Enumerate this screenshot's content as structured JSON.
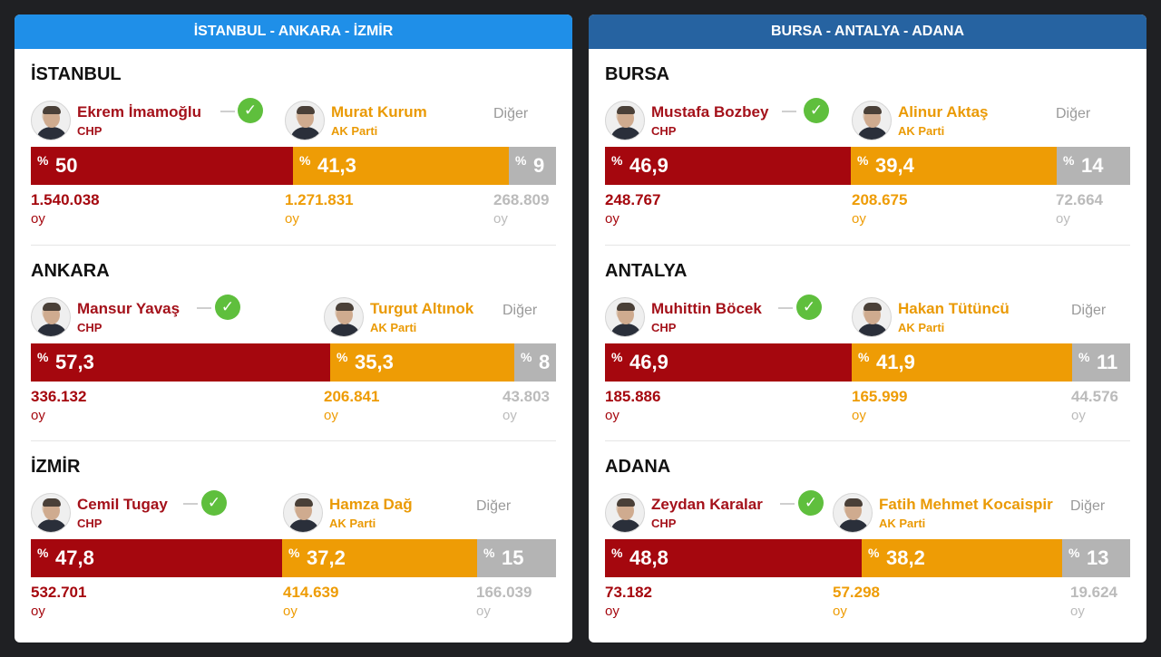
{
  "panels": [
    {
      "title": "İSTANBUL - ANKARA - İZMİR",
      "cities": [
        {
          "name": "İSTANBUL",
          "c1": {
            "name": "Ekrem İmamoğlu",
            "party": "CHP",
            "pct": 50,
            "pct_label": "50",
            "votes": "1.540.038"
          },
          "c2": {
            "name": "Murat Kurum",
            "party": "AK Parti",
            "pct": 41.3,
            "pct_label": "41,3",
            "votes": "1.271.831"
          },
          "other": {
            "label": "Diğer",
            "pct": 9,
            "pct_label": "9",
            "votes": "268.809"
          }
        },
        {
          "name": "ANKARA",
          "c1": {
            "name": "Mansur Yavaş",
            "party": "CHP",
            "pct": 57.3,
            "pct_label": "57,3",
            "votes": "336.132"
          },
          "c2": {
            "name": "Turgut Altınok",
            "party": "AK Parti",
            "pct": 35.3,
            "pct_label": "35,3",
            "votes": "206.841"
          },
          "other": {
            "label": "Diğer",
            "pct": 8,
            "pct_label": "8",
            "votes": "43.803"
          }
        },
        {
          "name": "İZMİR",
          "c1": {
            "name": "Cemil Tugay",
            "party": "CHP",
            "pct": 47.8,
            "pct_label": "47,8",
            "votes": "532.701"
          },
          "c2": {
            "name": "Hamza Dağ",
            "party": "AK Parti",
            "pct": 37.2,
            "pct_label": "37,2",
            "votes": "414.639"
          },
          "other": {
            "label": "Diğer",
            "pct": 15,
            "pct_label": "15",
            "votes": "166.039"
          }
        }
      ]
    },
    {
      "title": "BURSA - ANTALYA - ADANA",
      "cities": [
        {
          "name": "BURSA",
          "c1": {
            "name": "Mustafa Bozbey",
            "party": "CHP",
            "pct": 46.9,
            "pct_label": "46,9",
            "votes": "248.767"
          },
          "c2": {
            "name": "Alinur Aktaş",
            "party": "AK Parti",
            "pct": 39.4,
            "pct_label": "39,4",
            "votes": "208.675"
          },
          "other": {
            "label": "Diğer",
            "pct": 14,
            "pct_label": "14",
            "votes": "72.664"
          }
        },
        {
          "name": "ANTALYA",
          "c1": {
            "name": "Muhittin Böcek",
            "party": "CHP",
            "pct": 46.9,
            "pct_label": "46,9",
            "votes": "185.886"
          },
          "c2": {
            "name": "Hakan Tütüncü",
            "party": "AK Parti",
            "pct": 41.9,
            "pct_label": "41,9",
            "votes": "165.999"
          },
          "other": {
            "label": "Diğer",
            "pct": 11,
            "pct_label": "11",
            "votes": "44.576"
          }
        },
        {
          "name": "ADANA",
          "c1": {
            "name": "Zeydan Karalar",
            "party": "CHP",
            "pct": 48.8,
            "pct_label": "48,8",
            "votes": "73.182"
          },
          "c2": {
            "name": "Fatih Mehmet Kocaispir",
            "party": "AK Parti",
            "pct": 38.2,
            "pct_label": "38,2",
            "votes": "57.298"
          },
          "other": {
            "label": "Diğer",
            "pct": 13,
            "pct_label": "13",
            "votes": "19.624"
          }
        }
      ]
    }
  ],
  "labels": {
    "percent_sign": "%",
    "vote_unit": "oy",
    "check_glyph": "✓"
  },
  "colors": {
    "chp": "#a5070e",
    "akp": "#ee9c05",
    "other": "#b4b4b4",
    "win": "#5fbf3d"
  }
}
